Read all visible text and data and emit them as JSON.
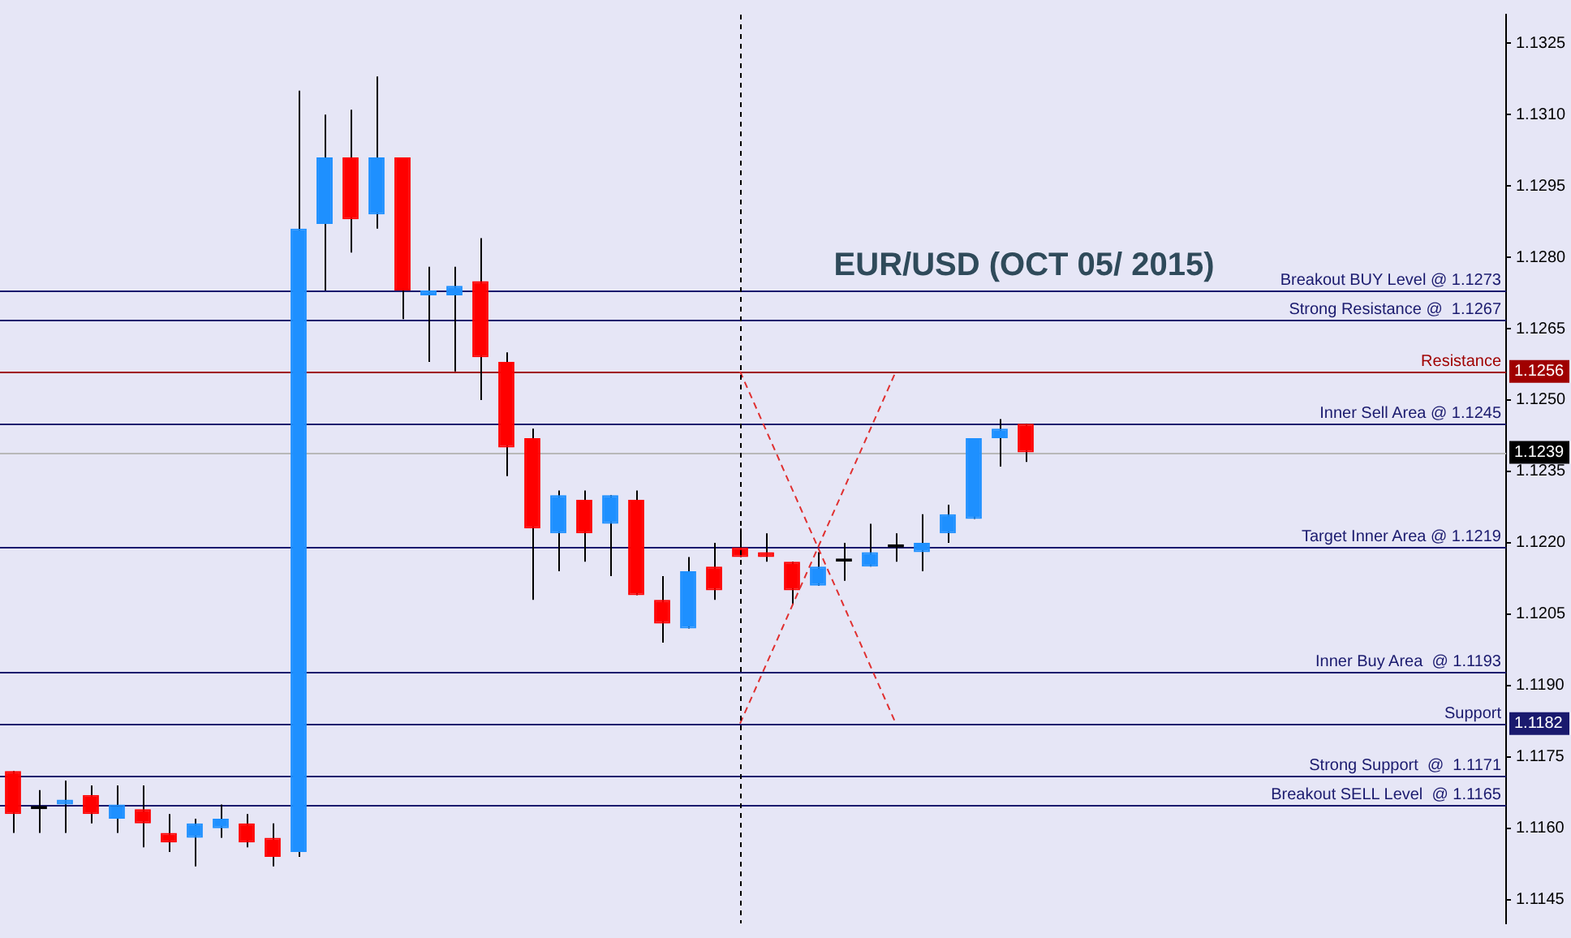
{
  "chart_data": {
    "type": "candlestick",
    "title": "EUR/USD (OCT 05/ 2015)",
    "categories": [
      null,
      null,
      null,
      null,
      null,
      null,
      null,
      null,
      null,
      null,
      null,
      null,
      null,
      null,
      null,
      null,
      null,
      null,
      null,
      null,
      null,
      null,
      null,
      null,
      null,
      null,
      null,
      null,
      null,
      null,
      null,
      null,
      null,
      null,
      null,
      null,
      null,
      null,
      null,
      null,
      null,
      null,
      null,
      null,
      null,
      null,
      null,
      null,
      null,
      null,
      null,
      null,
      null,
      null,
      null,
      null,
      null,
      null
    ],
    "ohlc": [
      [
        1.1172,
        1.1172,
        1.1159,
        1.1163
      ],
      [
        1.1164,
        1.1168,
        1.1159,
        1.1164
      ],
      [
        1.1165,
        1.117,
        1.1159,
        1.1166
      ],
      [
        1.1167,
        1.1169,
        1.1161,
        1.1163
      ],
      [
        1.1162,
        1.1169,
        1.1159,
        1.1165
      ],
      [
        1.1164,
        1.1169,
        1.1156,
        1.1161
      ],
      [
        1.1159,
        1.1163,
        1.1155,
        1.1157
      ],
      [
        1.1158,
        1.1162,
        1.1152,
        1.1161
      ],
      [
        1.116,
        1.1165,
        1.1158,
        1.1162
      ],
      [
        1.1161,
        1.1163,
        1.1156,
        1.1157
      ],
      [
        1.1158,
        1.1161,
        1.1152,
        1.1154
      ],
      [
        1.1155,
        1.1315,
        1.1154,
        1.1286
      ],
      [
        1.1287,
        1.131,
        1.1273,
        1.1301
      ],
      [
        1.1301,
        1.1311,
        1.1281,
        1.1288
      ],
      [
        1.1289,
        1.1318,
        1.1286,
        1.1301
      ],
      [
        1.1301,
        1.1301,
        1.1267,
        1.1273
      ],
      [
        1.1272,
        1.1278,
        1.1258,
        1.1273
      ],
      [
        1.1272,
        1.1278,
        1.1256,
        1.1274
      ],
      [
        1.1275,
        1.1284,
        1.125,
        1.1259
      ],
      [
        1.1258,
        1.126,
        1.1234,
        1.124
      ],
      [
        1.1242,
        1.1244,
        1.1208,
        1.1223
      ],
      [
        1.1222,
        1.1231,
        1.1214,
        1.123
      ],
      [
        1.1229,
        1.1231,
        1.1216,
        1.1222
      ],
      [
        1.1224,
        1.123,
        1.1213,
        1.123
      ],
      [
        1.1229,
        1.1231,
        1.1209,
        1.1209
      ],
      [
        1.1208,
        1.1213,
        1.1199,
        1.1203
      ],
      [
        1.1202,
        1.1217,
        1.1202,
        1.1214
      ],
      [
        1.1215,
        1.122,
        1.1208,
        1.121
      ],
      [
        1.1219,
        1.1223,
        1.1217,
        1.1217
      ],
      [
        1.1218,
        1.1222,
        1.1216,
        1.1217
      ],
      [
        1.1216,
        1.1216,
        1.1207,
        1.121
      ],
      [
        1.1211,
        1.1218,
        1.1211,
        1.1215
      ],
      [
        1.1216,
        1.122,
        1.1212,
        1.1216
      ],
      [
        1.1215,
        1.1224,
        1.1215,
        1.1218
      ],
      [
        1.1219,
        1.1222,
        1.1216,
        1.1219
      ],
      [
        1.1218,
        1.1226,
        1.1214,
        1.122
      ],
      [
        1.1222,
        1.1228,
        1.122,
        1.1226
      ],
      [
        1.1225,
        1.1242,
        1.1225,
        1.1242
      ],
      [
        1.1242,
        1.1246,
        1.1236,
        1.1244
      ],
      [
        1.1245,
        1.1245,
        1.1237,
        1.1239
      ],
      null,
      null,
      null,
      null,
      null,
      null,
      null,
      null,
      null,
      null,
      null,
      null,
      null,
      null,
      null,
      null,
      null,
      null
    ],
    "series": [
      {
        "type": "line",
        "color": "#e03030",
        "line_style": "dashed",
        "values": [
          null,
          null,
          null,
          null,
          null,
          null,
          null,
          null,
          null,
          null,
          null,
          null,
          null,
          null,
          null,
          null,
          null,
          null,
          null,
          null,
          null,
          null,
          null,
          null,
          null,
          null,
          null,
          null,
          1.1256,
          null,
          null,
          null,
          null,
          null,
          1.1182,
          null,
          null,
          null,
          null,
          null,
          null,
          null,
          null,
          null,
          null,
          null,
          null,
          null,
          null,
          null,
          null,
          null,
          null,
          null,
          null,
          null,
          null,
          null
        ]
      },
      {
        "type": "line",
        "color": "#e03030",
        "line_style": "dashed",
        "values": [
          null,
          null,
          null,
          null,
          null,
          null,
          null,
          null,
          null,
          null,
          null,
          null,
          null,
          null,
          null,
          null,
          null,
          null,
          null,
          null,
          null,
          null,
          null,
          null,
          null,
          null,
          null,
          null,
          1.1182,
          null,
          null,
          null,
          null,
          null,
          1.1256,
          null,
          null,
          null,
          null,
          null,
          null,
          null,
          null,
          null,
          null,
          null,
          null,
          null,
          null,
          null,
          null,
          null,
          null,
          null,
          null,
          null,
          null,
          null
        ]
      }
    ],
    "colors": [
      "#ff0000",
      "#000000",
      "#1e90ff",
      "#ff0000",
      "#1e90ff",
      "#ff0000",
      "#ff0000",
      "#1e90ff",
      "#1e90ff",
      "#ff0000",
      "#ff0000",
      "#1e90ff",
      "#1e90ff",
      "#ff0000",
      "#1e90ff",
      "#ff0000",
      "#1e90ff",
      "#1e90ff",
      "#ff0000",
      "#ff0000",
      "#ff0000",
      "#1e90ff",
      "#ff0000",
      "#1e90ff",
      "#ff0000",
      "#ff0000",
      "#1e90ff",
      "#ff0000",
      "#ff0000",
      "#ff0000",
      "#ff0000",
      "#1e90ff",
      "#000000",
      "#1e90ff",
      "#000000",
      "#1e90ff",
      "#1e90ff",
      "#1e90ff",
      "#1e90ff",
      "#ff0000",
      null,
      null,
      null,
      null,
      null,
      null,
      null,
      null,
      null,
      null,
      null,
      null,
      null,
      null,
      null,
      null,
      null,
      null
    ],
    "ylim": [
      1.114,
      1.1331
    ],
    "yticks": [
      1.1145,
      {
        "value": 1.116,
        "label": "1.1160"
      },
      1.1175,
      {
        "value": 1.119,
        "label": "1.1190"
      },
      1.1205,
      {
        "value": 1.122,
        "label": "1.1220"
      },
      1.1235,
      {
        "value": 1.125,
        "label": "1.1250"
      },
      1.1265,
      {
        "value": 1.128,
        "label": "1.1280"
      },
      1.1295,
      {
        "value": 1.131,
        "label": "1.1310"
      },
      1.1325
    ],
    "tick_labels": "y",
    "ref_lines": [
      {
        "axis": "y",
        "value": 1.1256,
        "label": "Resistance",
        "color": "#a00000"
      },
      {
        "axis": "y",
        "value": 1.1182,
        "label": "Support",
        "color": "#1a1a6e"
      },
      {
        "axis": "y",
        "value": 1.1239,
        "label": null,
        "color": "#b8b8b8"
      },
      {
        "axis": "y",
        "value": 1.1273,
        "label": "Breakout BUY Level @ 1.1273",
        "color": "#1a1a6e"
      },
      {
        "axis": "y",
        "value": 1.1267,
        "label": "Strong Resistance @  1.1267",
        "color": "#1a1a6e"
      },
      {
        "axis": "y",
        "value": 1.1245,
        "label": "Inner Sell Area @ 1.1245",
        "color": "#1a1a6e"
      },
      {
        "axis": "y",
        "value": 1.1219,
        "label": "Target Inner Area @ 1.1219",
        "color": "#1a1a6e"
      },
      {
        "axis": "y",
        "value": 1.1193,
        "label": "Inner Buy Area  @ 1.1193",
        "color": "#1a1a6e"
      },
      {
        "axis": "y",
        "value": 1.1171,
        "label": "Strong Support  @  1.1171",
        "color": "#1a1a6e"
      },
      {
        "axis": "y",
        "value": 1.1165,
        "label": "Breakout SELL Level  @ 1.1165",
        "color": "#1a1a6e"
      }
    ],
    "annotations": [
      {
        "text": "1.1256",
        "y": 1.1256
      },
      {
        "text": "1.1239",
        "y": 1.1239
      },
      {
        "text": "1.1182",
        "y": 1.1182
      }
    ]
  }
}
